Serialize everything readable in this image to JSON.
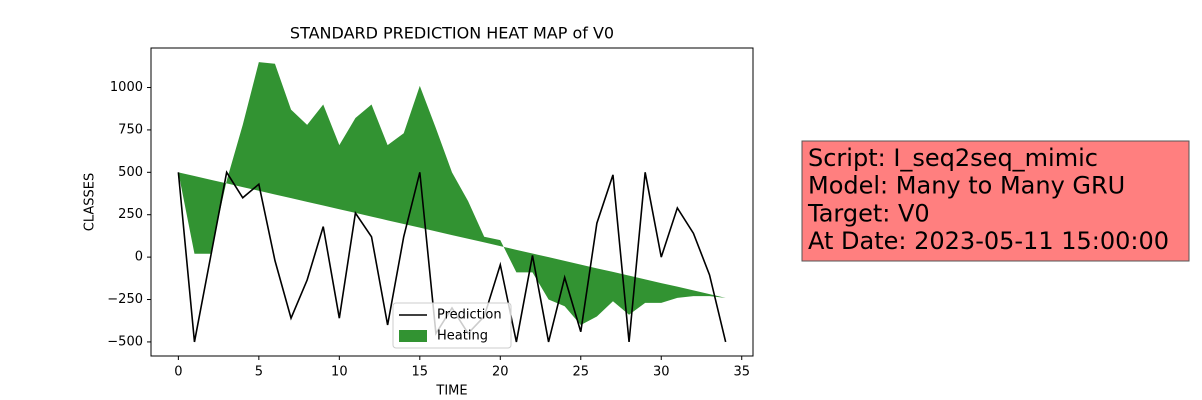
{
  "chart_data": {
    "type": "line",
    "title": "STANDARD PREDICTION HEAT MAP of V0",
    "x_label": "TIME",
    "y_label": "CLASSES",
    "x": [
      0,
      1,
      2,
      3,
      4,
      5,
      6,
      7,
      8,
      9,
      10,
      11,
      12,
      13,
      14,
      15,
      16,
      17,
      18,
      19,
      20,
      21,
      22,
      23,
      24,
      25,
      26,
      27,
      28,
      29,
      30,
      31,
      32,
      33,
      34
    ],
    "series": [
      {
        "name": "Prediction",
        "color": "#000000",
        "values": [
          500,
          -500,
          0,
          500,
          350,
          430,
          -20,
          -360,
          -135,
          180,
          -360,
          260,
          120,
          -400,
          120,
          500,
          -450,
          -300,
          -450,
          -350,
          -45,
          -500,
          10,
          -500,
          -120,
          -440,
          200,
          485,
          -500,
          500,
          0,
          290,
          140,
          -105,
          -500
        ]
      },
      {
        "name": "Heating",
        "color": "#228b22",
        "fill": true,
        "values": [
          500,
          20,
          20,
          450,
          780,
          1150,
          1140,
          870,
          780,
          900,
          660,
          820,
          900,
          660,
          730,
          1010,
          760,
          500,
          330,
          120,
          100,
          -90,
          -90,
          -250,
          -290,
          -400,
          -350,
          -260,
          -340,
          -270,
          -270,
          -240,
          -230,
          -230,
          -240
        ],
        "baseline": [
          500,
          478,
          456,
          435,
          413,
          391,
          369,
          348,
          326,
          304,
          282,
          261,
          239,
          217,
          195,
          174,
          152,
          130,
          108,
          87,
          65,
          43,
          21,
          0,
          -22,
          -44,
          -66,
          -87,
          -109,
          -131,
          -153,
          -174,
          -196,
          -218,
          -240
        ]
      }
    ],
    "xlim": [
      -1.7,
      35.7
    ],
    "ylim": [
      -583,
      1233
    ],
    "xticks": [
      0,
      5,
      10,
      15,
      20,
      25,
      30,
      35
    ],
    "yticks": [
      {
        "value": -500,
        "label": "−500"
      },
      {
        "value": -250,
        "label": "−250"
      },
      0,
      250,
      500,
      750,
      1000
    ],
    "legend": "lower center",
    "annotation": {
      "lines": [
        "Script: I_seq2seq_mimic",
        "Model: Many to Many GRU",
        "Target: V0",
        "At Date: 2023-05-11 15:00:00"
      ],
      "color": "#ff7f7f"
    }
  }
}
